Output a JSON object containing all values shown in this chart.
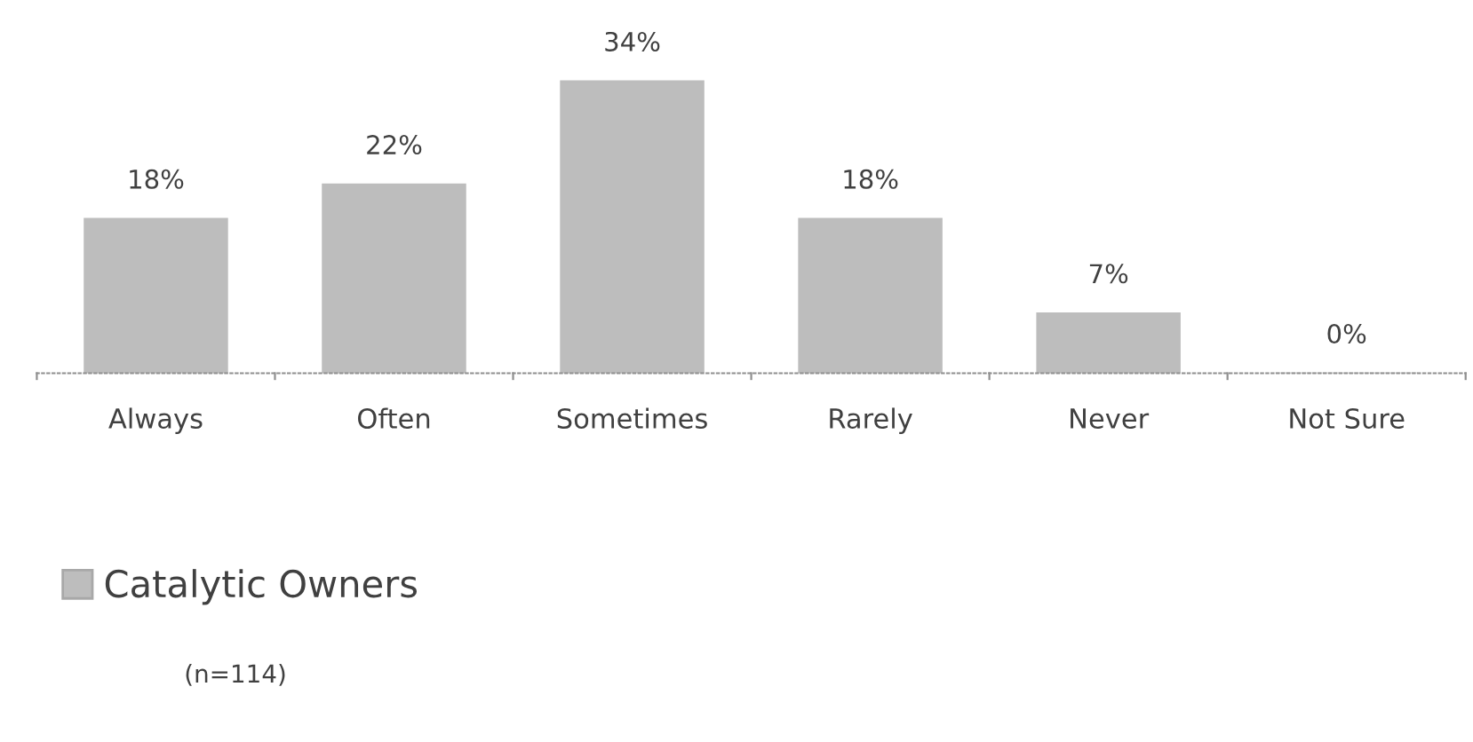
{
  "chart_data": {
    "type": "bar",
    "categories": [
      "Always",
      "Often",
      "Sometimes",
      "Rarely",
      "Never",
      "Not Sure"
    ],
    "series": [
      {
        "name": "Catalytic Owners",
        "color": "#bdbdbd",
        "values": [
          18,
          22,
          34,
          18,
          7,
          0
        ],
        "value_labels": [
          "18%",
          "22%",
          "34%",
          "18%",
          "7%",
          "0%"
        ]
      }
    ],
    "legend": "bottom left",
    "grid": false,
    "annotations": [
      "(n=114)"
    ]
  }
}
